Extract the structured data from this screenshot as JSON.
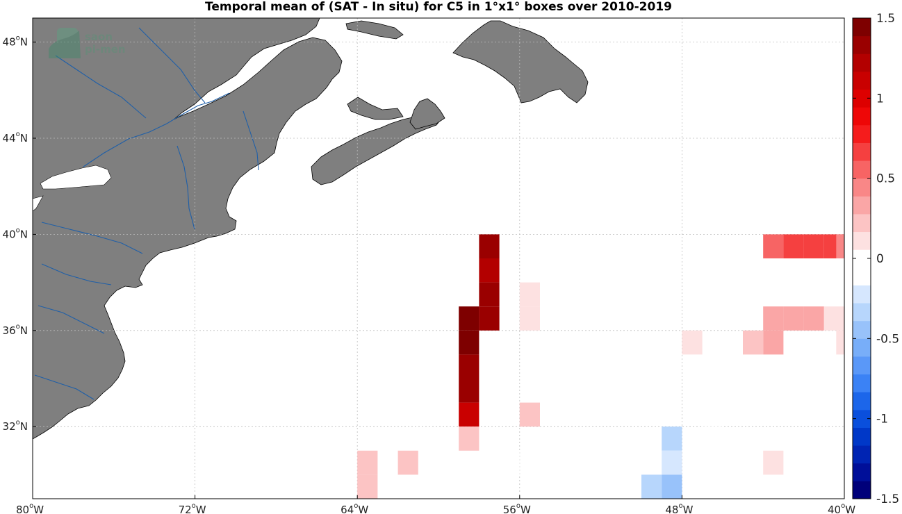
{
  "title": "Temporal mean of (SAT - In situ) for C5 in 1°x1° boxes over 2010-2019",
  "logo": {
    "line1": "saon",
    "line2": "pi-men"
  },
  "map": {
    "lon_range": [
      -80,
      -40
    ],
    "lat_range": [
      29,
      49
    ],
    "land_color": "#7f7f7f",
    "river_color": "#1f5fa8",
    "grid": true
  },
  "x_ticks": [
    {
      "value": -80,
      "label": "80",
      "suffix": "W"
    },
    {
      "value": -72,
      "label": "72",
      "suffix": "W"
    },
    {
      "value": -64,
      "label": "64",
      "suffix": "W"
    },
    {
      "value": -56,
      "label": "56",
      "suffix": "W"
    },
    {
      "value": -48,
      "label": "48",
      "suffix": "W"
    },
    {
      "value": -40,
      "label": "40",
      "suffix": "W"
    }
  ],
  "y_ticks": [
    {
      "value": 48,
      "label": "48",
      "suffix": "N"
    },
    {
      "value": 44,
      "label": "44",
      "suffix": "N"
    },
    {
      "value": 40,
      "label": "40",
      "suffix": "N"
    },
    {
      "value": 36,
      "label": "36",
      "suffix": "N"
    },
    {
      "value": 32,
      "label": "32",
      "suffix": "N"
    }
  ],
  "colorbar": {
    "range": [
      -1.5,
      1.5
    ],
    "ticks": [
      {
        "value": 1.5,
        "label": "1.5"
      },
      {
        "value": 1,
        "label": "1"
      },
      {
        "value": 0.5,
        "label": "0.5"
      },
      {
        "value": 0,
        "label": "0"
      },
      {
        "value": -0.5,
        "label": "-0.5"
      },
      {
        "value": -1,
        "label": "-1"
      },
      {
        "value": -1.5,
        "label": "-1.5"
      }
    ],
    "colors": [
      "#00007a",
      "#000f99",
      "#0024b3",
      "#0038c8",
      "#0a4fdc",
      "#1c66ea",
      "#3b82f5",
      "#5a98f8",
      "#78aef9",
      "#98c2fa",
      "#b7d6fc",
      "#d6e7fe",
      "#ffffff",
      "#ffffff",
      "#fde1e1",
      "#fcc4c4",
      "#faa6a6",
      "#f98787",
      "#f76464",
      "#f54040",
      "#f51c1c",
      "#ee0707",
      "#dd0000",
      "#c90000",
      "#b30000",
      "#9a0000",
      "#7e0000"
    ]
  },
  "chart_data": {
    "type": "heatmap",
    "title": "Temporal mean of (SAT - In situ) for C5 in 1°x1° boxes over 2010-2019",
    "xlabel": "",
    "ylabel": "",
    "xlim": [
      -80,
      -40
    ],
    "ylim": [
      29,
      49
    ],
    "clim": [
      -1.5,
      1.5
    ],
    "cell_size_deg": 1,
    "cells": [
      {
        "lon": -58,
        "lat": 39,
        "value": 1.3
      },
      {
        "lon": -58,
        "lat": 38,
        "value": 1.2
      },
      {
        "lon": -58,
        "lat": 37,
        "value": 1.35
      },
      {
        "lon": -58,
        "lat": 36,
        "value": 1.35
      },
      {
        "lon": -59,
        "lat": 36,
        "value": 1.5
      },
      {
        "lon": -59,
        "lat": 35,
        "value": 1.4
      },
      {
        "lon": -59,
        "lat": 34,
        "value": 1.35
      },
      {
        "lon": -59,
        "lat": 33,
        "value": 1.3
      },
      {
        "lon": -59,
        "lat": 32,
        "value": 1.15
      },
      {
        "lon": -59,
        "lat": 31,
        "value": 0.2
      },
      {
        "lon": -56,
        "lat": 37,
        "value": 0.15
      },
      {
        "lon": -56,
        "lat": 36,
        "value": 0.15
      },
      {
        "lon": -56,
        "lat": 32,
        "value": 0.2
      },
      {
        "lon": -57,
        "lat": 30,
        "value": -0.1
      },
      {
        "lon": -64,
        "lat": 30,
        "value": 0.2
      },
      {
        "lon": -64,
        "lat": 29,
        "value": 0.2
      },
      {
        "lon": -62,
        "lat": 30,
        "value": 0.2
      },
      {
        "lon": -44,
        "lat": 39,
        "value": 0.55
      },
      {
        "lon": -43,
        "lat": 39,
        "value": 0.65
      },
      {
        "lon": -42,
        "lat": 39,
        "value": 0.65
      },
      {
        "lon": -41,
        "lat": 39,
        "value": 0.65
      },
      {
        "lon": -40.4,
        "lat": 39,
        "value": 0.4
      },
      {
        "lon": -44,
        "lat": 36,
        "value": 0.3
      },
      {
        "lon": -43,
        "lat": 36,
        "value": 0.3
      },
      {
        "lon": -42,
        "lat": 36,
        "value": 0.3
      },
      {
        "lon": -41,
        "lat": 36,
        "value": 0.15
      },
      {
        "lon": -44,
        "lat": 35,
        "value": 0.3
      },
      {
        "lon": -45,
        "lat": 35,
        "value": 0.2
      },
      {
        "lon": -48,
        "lat": 35,
        "value": 0.15
      },
      {
        "lon": -40.4,
        "lat": 35,
        "value": 0.15
      },
      {
        "lon": -49,
        "lat": 31,
        "value": -0.3
      },
      {
        "lon": -49,
        "lat": 30,
        "value": -0.25
      },
      {
        "lon": -47,
        "lat": 31,
        "value": -0.15
      },
      {
        "lon": -44,
        "lat": 30,
        "value": 0.15
      },
      {
        "lon": -51,
        "lat": 29,
        "value": -0.1
      },
      {
        "lon": -50,
        "lat": 29,
        "value": -0.3
      },
      {
        "lon": -49,
        "lat": 29,
        "value": -0.4
      },
      {
        "lon": -43,
        "lat": 29,
        "value": -0.1
      }
    ]
  }
}
